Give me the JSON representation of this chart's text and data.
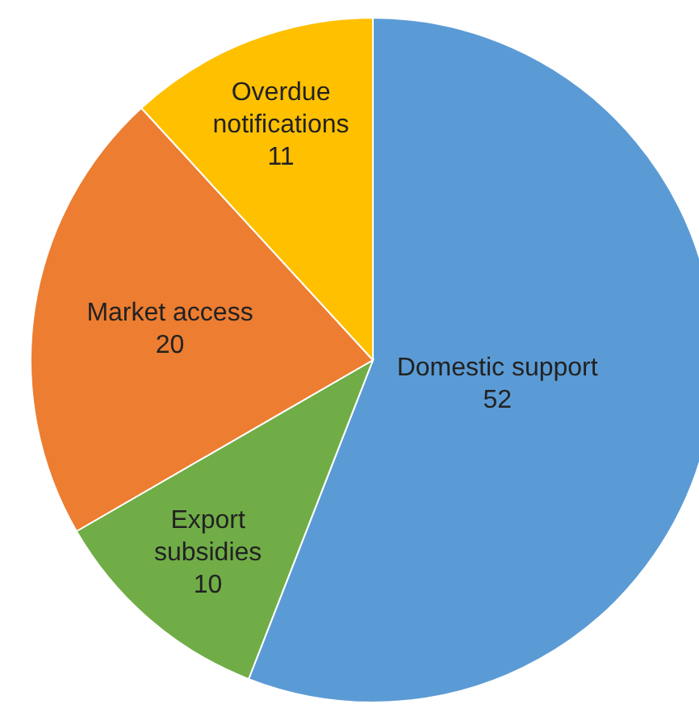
{
  "chart_data": {
    "type": "pie",
    "categories": [
      "Domestic support",
      "Export subsidies",
      "Market access",
      "Overdue notifications"
    ],
    "values": [
      52,
      10,
      20,
      11
    ],
    "colors": [
      "#5b9bd5",
      "#70ad47",
      "#ed7d31",
      "#ffc000"
    ],
    "data_labels": true
  }
}
